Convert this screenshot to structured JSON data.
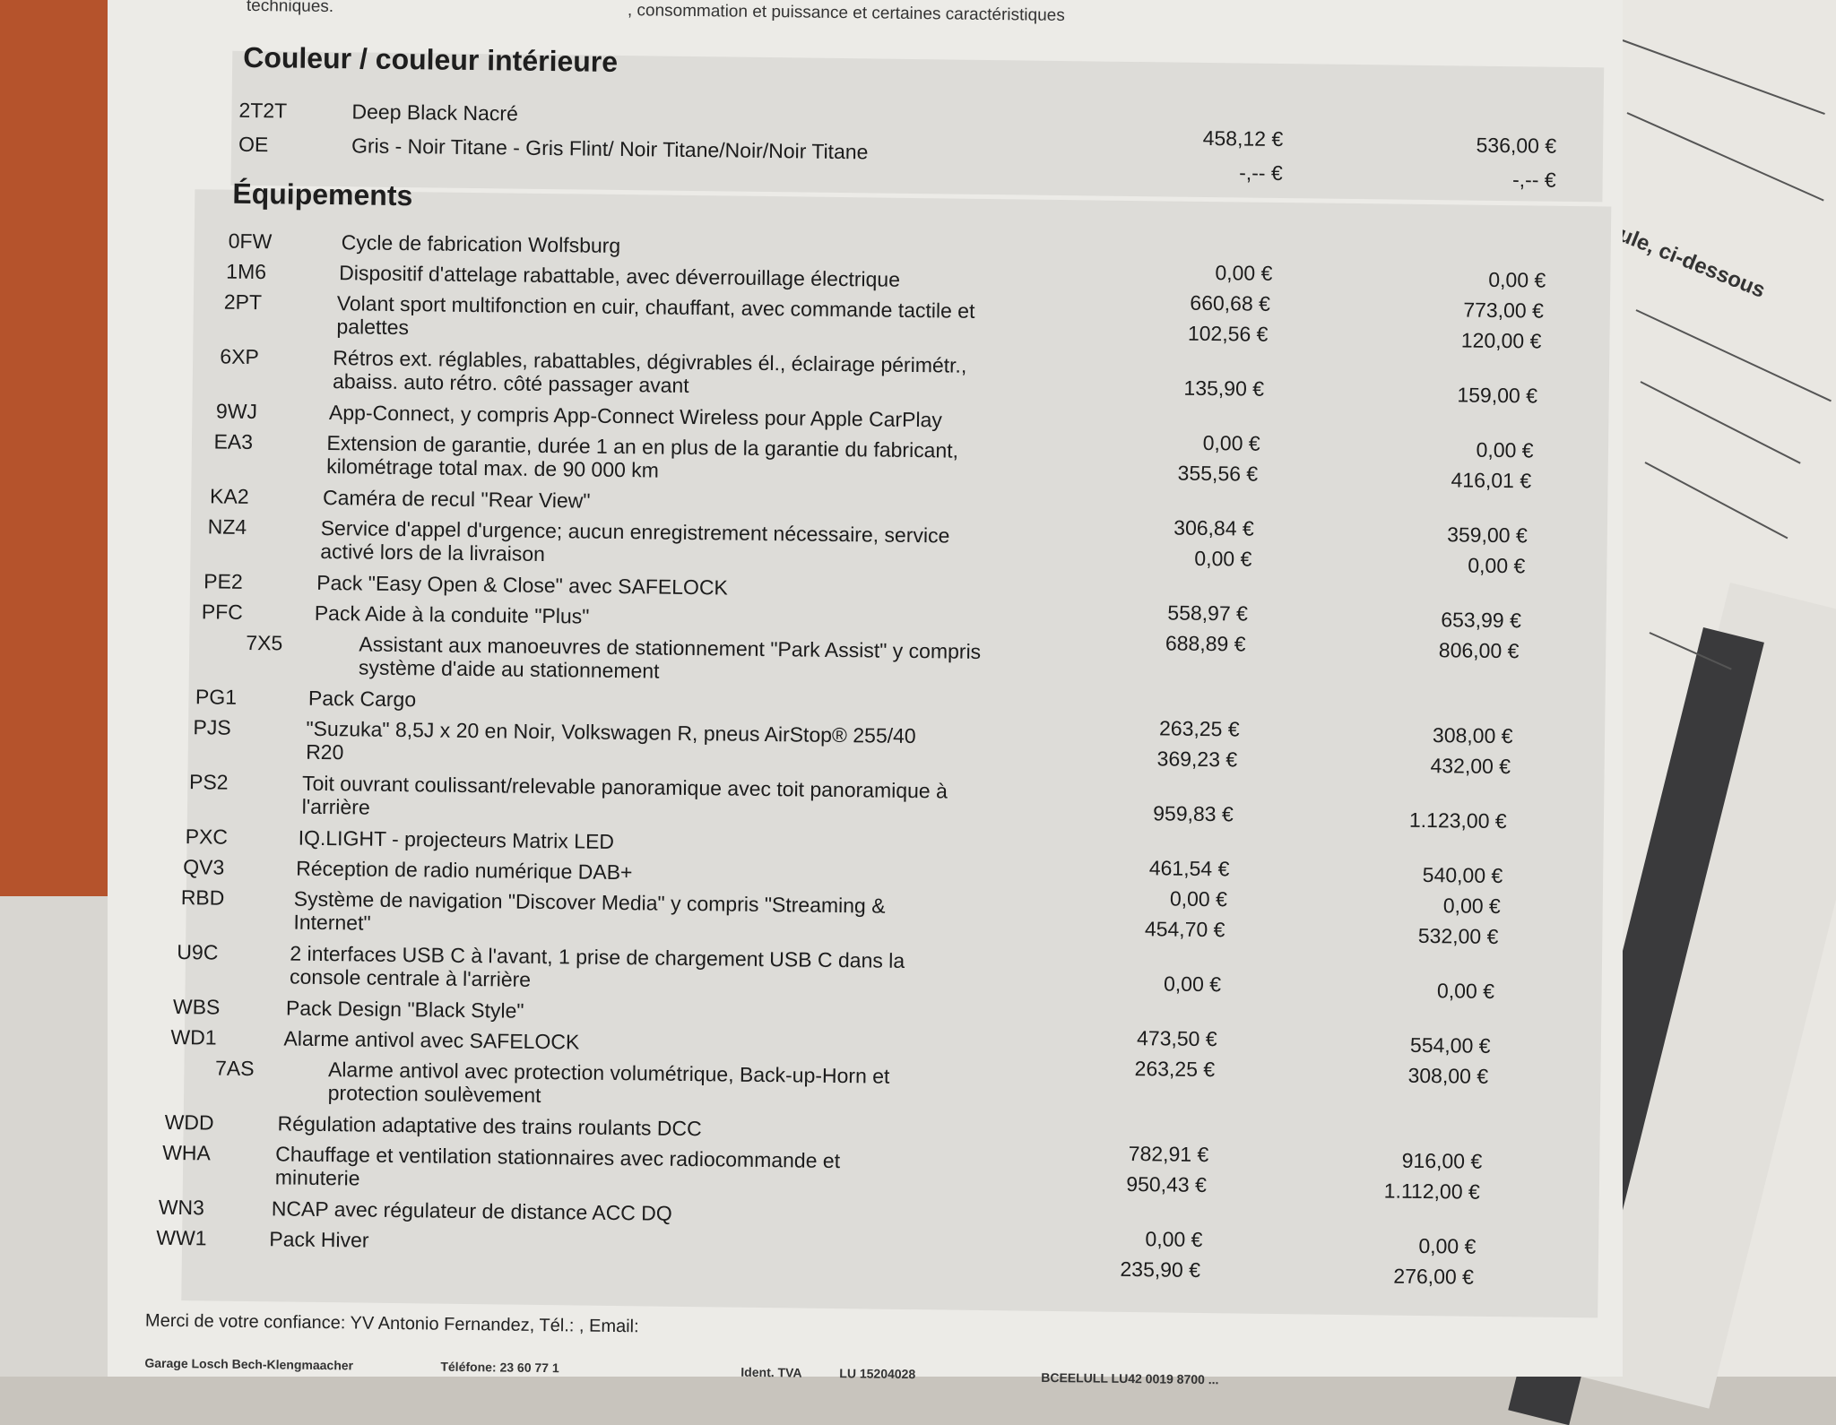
{
  "header_fragment": {
    "left": "techniques.",
    "right": ", consommation et puissance et certaines caractéristiques"
  },
  "color_section": {
    "title": "Couleur / couleur intérieure",
    "items": [
      {
        "code": "2T2T",
        "desc": "Deep Black Nacré",
        "net": "458,12 €",
        "gross": "536,00 €"
      },
      {
        "code": "OE",
        "desc": "Gris - Noir Titane - Gris Flint/ Noir Titane/Noir/Noir Titane",
        "net": "-,-- €",
        "gross": "-,-- €"
      }
    ]
  },
  "equipment_section": {
    "title": "Équipements",
    "items": [
      {
        "code": "0FW",
        "desc": "Cycle de fabrication Wolfsburg",
        "net": "0,00 €",
        "gross": "0,00 €",
        "lines": 1
      },
      {
        "code": "1M6",
        "desc": "Dispositif d'attelage rabattable, avec déverrouillage électrique",
        "net": "660,68 €",
        "gross": "773,00 €",
        "lines": 1
      },
      {
        "code": "2PT",
        "desc": "Volant sport multifonction en cuir, chauffant, avec commande tactile et palettes",
        "net": "102,56 €",
        "gross": "120,00 €",
        "lines": 2
      },
      {
        "code": "6XP",
        "desc": "Rétros ext. réglables, rabattables, dégivrables él., éclairage périmétr., abaiss. auto rétro. côté passager avant",
        "net": "135,90 €",
        "gross": "159,00 €",
        "lines": 2
      },
      {
        "code": "9WJ",
        "desc": "App-Connect, y compris App-Connect Wireless pour Apple CarPlay",
        "net": "0,00 €",
        "gross": "0,00 €",
        "lines": 1
      },
      {
        "code": "EA3",
        "desc": "Extension de garantie, durée 1 an en plus de la garantie du fabricant, kilométrage total max. de 90 000 km",
        "net": "355,56 €",
        "gross": "416,01 €",
        "lines": 2
      },
      {
        "code": "KA2",
        "desc": "Caméra de recul \"Rear View\"",
        "net": "306,84 €",
        "gross": "359,00 €",
        "lines": 1
      },
      {
        "code": "NZ4",
        "desc": "Service d'appel d'urgence; aucun enregistrement nécessaire, service activé lors de la livraison",
        "net": "0,00 €",
        "gross": "0,00 €",
        "lines": 2
      },
      {
        "code": "PE2",
        "desc": "Pack \"Easy Open & Close\" avec SAFELOCK",
        "net": "558,97 €",
        "gross": "653,99 €",
        "lines": 1
      },
      {
        "code": "PFC",
        "desc": "Pack Aide à la conduite \"Plus\"",
        "net": "688,89 €",
        "gross": "806,00 €",
        "lines": 1
      },
      {
        "code": "7X5",
        "desc": "Assistant aux manoeuvres de stationnement \"Park Assist\" y compris système d'aide au stationnement",
        "net": "",
        "gross": "",
        "lines": 2,
        "sub": true
      },
      {
        "code": "PG1",
        "desc": "Pack Cargo",
        "net": "263,25 €",
        "gross": "308,00 €",
        "lines": 1
      },
      {
        "code": "PJS",
        "desc": "\"Suzuka\" 8,5J x 20 en Noir, Volkswagen R, pneus AirStop® 255/40 R20",
        "net": "369,23 €",
        "gross": "432,00 €",
        "lines": 2
      },
      {
        "code": "PS2",
        "desc": "Toit ouvrant coulissant/relevable panoramique avec toit panoramique à l'arrière",
        "net": "959,83 €",
        "gross": "1.123,00 €",
        "lines": 2
      },
      {
        "code": "PXC",
        "desc": "IQ.LIGHT - projecteurs Matrix LED",
        "net": "461,54 €",
        "gross": "540,00 €",
        "lines": 1
      },
      {
        "code": "QV3",
        "desc": "Réception de radio numérique DAB+",
        "net": "0,00 €",
        "gross": "0,00 €",
        "lines": 1
      },
      {
        "code": "RBD",
        "desc": "Système de navigation \"Discover Media\" y compris \"Streaming & Internet\"",
        "net": "454,70 €",
        "gross": "532,00 €",
        "lines": 2
      },
      {
        "code": "U9C",
        "desc": "2 interfaces USB C à l'avant, 1 prise de chargement USB C dans la console centrale à l'arrière",
        "net": "0,00 €",
        "gross": "0,00 €",
        "lines": 2
      },
      {
        "code": "WBS",
        "desc": "Pack Design \"Black Style\"",
        "net": "473,50 €",
        "gross": "554,00 €",
        "lines": 1
      },
      {
        "code": "WD1",
        "desc": "Alarme antivol avec SAFELOCK",
        "net": "263,25 €",
        "gross": "308,00 €",
        "lines": 1
      },
      {
        "code": "7AS",
        "desc": "Alarme antivol avec protection volumétrique, Back-up-Horn et protection soulèvement",
        "net": "",
        "gross": "",
        "lines": 2,
        "sub": true
      },
      {
        "code": "WDD",
        "desc": "Régulation adaptative des trains roulants DCC",
        "net": "782,91 €",
        "gross": "916,00 €",
        "lines": 1
      },
      {
        "code": "WHA",
        "desc": "Chauffage et ventilation stationnaires avec radiocommande et minuterie",
        "net": "950,43 €",
        "gross": "1.112,00 €",
        "lines": 2
      },
      {
        "code": "WN3",
        "desc": "NCAP avec régulateur de distance ACC DQ",
        "net": "0,00 €",
        "gross": "0,00 €",
        "lines": 1
      },
      {
        "code": "WW1",
        "desc": "Pack Hiver",
        "net": "235,90 €",
        "gross": "276,00 €",
        "lines": 1
      }
    ]
  },
  "footer": {
    "thanks": "Merci de votre confiance: YV Antonio Fernandez, Tél.: , Email:",
    "company": "Garage Losch Bech-Klengmaacher",
    "phone": "Téléfone: 23 60 77 1",
    "vat_label": "Ident. TVA",
    "vat": "LU 15204028",
    "bank": "BCEELULL LU42 0019 8700 ..."
  },
  "side_paper": {
    "text": "ule, ci-dessous"
  }
}
